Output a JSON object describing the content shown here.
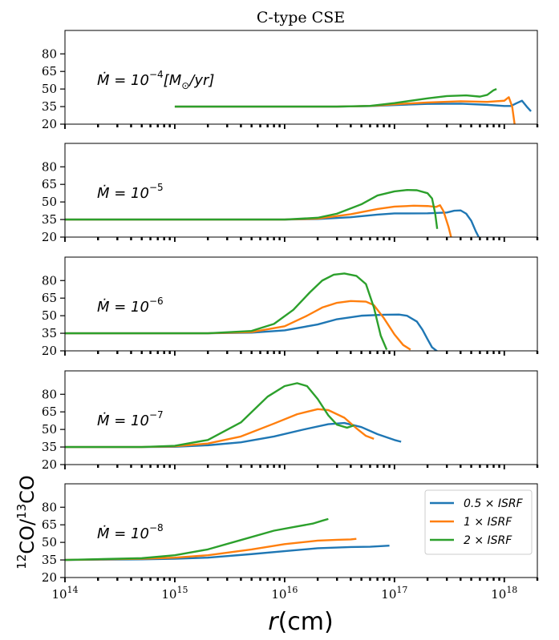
{
  "chart_data": [
    {
      "type": "line",
      "title": "C-type CSE",
      "annotation": "Ṁ = 10⁻⁴[M⊙/yr]",
      "annotation_parts": [
        {
          "t": "Ṁ = 10"
        },
        {
          "t": "−4",
          "sup": true
        },
        {
          "t": "[M"
        },
        {
          "t": "⊙",
          "sub": true
        },
        {
          "t": "/yr]"
        }
      ],
      "xscale": "log",
      "xlim": [
        100000000000000.0,
        2e+18
      ],
      "ylim": [
        20,
        100
      ],
      "yticks": [
        20,
        35,
        50,
        65,
        80
      ],
      "series": [
        {
          "name": "0.5×ISRF",
          "color": "#1f77b4",
          "points": [
            [
              1000000000000000.0,
              35
            ],
            [
              1e+16,
              35
            ],
            [
              3e+16,
              35
            ],
            [
              6e+16,
              35.4
            ],
            [
              1e+17,
              36.3
            ],
            [
              2e+17,
              37.3
            ],
            [
              4e+17,
              37.5
            ],
            [
              7e+17,
              36.5
            ],
            [
              1e+18,
              35.5
            ],
            [
              1.15e+18,
              35.5
            ],
            [
              1.3e+18,
              38
            ],
            [
              1.45e+18,
              40
            ],
            [
              1.6e+18,
              35
            ],
            [
              1.75e+18,
              31
            ]
          ]
        },
        {
          "name": "1×ISRF",
          "color": "#ff7f0e",
          "points": [
            [
              1000000000000000.0,
              35
            ],
            [
              1e+16,
              35
            ],
            [
              3e+16,
              35
            ],
            [
              6e+16,
              35.5
            ],
            [
              1e+17,
              37
            ],
            [
              2e+17,
              38.5
            ],
            [
              4e+17,
              39.5
            ],
            [
              7e+17,
              39
            ],
            [
              1e+18,
              40
            ],
            [
              1.1e+18,
              43
            ],
            [
              1.18e+18,
              35
            ],
            [
              1.25e+18,
              18
            ]
          ]
        },
        {
          "name": "2×ISRF",
          "color": "#2ca02c",
          "points": [
            [
              1000000000000000.0,
              35
            ],
            [
              1e+16,
              35
            ],
            [
              3e+16,
              35
            ],
            [
              6e+16,
              35.6
            ],
            [
              1e+17,
              38
            ],
            [
              2e+17,
              42
            ],
            [
              3e+17,
              44
            ],
            [
              4.5e+17,
              44.6
            ],
            [
              6e+17,
              43.5
            ],
            [
              7e+17,
              45
            ],
            [
              8e+17,
              49
            ],
            [
              8.5e+17,
              50
            ]
          ]
        }
      ]
    },
    {
      "type": "line",
      "annotation": "Ṁ = 10⁻⁵",
      "annotation_parts": [
        {
          "t": "Ṁ = 10"
        },
        {
          "t": "−5",
          "sup": true
        }
      ],
      "xscale": "log",
      "xlim": [
        100000000000000.0,
        2e+18
      ],
      "ylim": [
        20,
        100
      ],
      "yticks": [
        20,
        35,
        50,
        65,
        80
      ],
      "series": [
        {
          "name": "0.5×ISRF",
          "color": "#1f77b4",
          "points": [
            [
              100000000000000.0,
              35
            ],
            [
              1e+16,
              35
            ],
            [
              2e+16,
              35.4
            ],
            [
              4e+16,
              37
            ],
            [
              7e+16,
              39.2
            ],
            [
              1e+17,
              40.2
            ],
            [
              2e+17,
              40.3
            ],
            [
              3e+17,
              41
            ],
            [
              3.5e+17,
              42.5
            ],
            [
              4e+17,
              42.8
            ],
            [
              4.5e+17,
              40
            ],
            [
              5e+17,
              34
            ],
            [
              5.5e+17,
              25
            ],
            [
              6e+17,
              18
            ]
          ]
        },
        {
          "name": "1×ISRF",
          "color": "#ff7f0e",
          "points": [
            [
              100000000000000.0,
              35
            ],
            [
              1e+16,
              35
            ],
            [
              2e+16,
              35.8
            ],
            [
              4e+16,
              39.5
            ],
            [
              7e+16,
              44
            ],
            [
              1e+17,
              46
            ],
            [
              1.5e+17,
              46.8
            ],
            [
              2e+17,
              46.5
            ],
            [
              2.4e+17,
              45.8
            ],
            [
              2.6e+17,
              47.2
            ],
            [
              2.8e+17,
              42
            ],
            [
              3.1e+17,
              29
            ],
            [
              3.3e+17,
              19
            ]
          ]
        },
        {
          "name": "2×ISRF",
          "color": "#2ca02c",
          "points": [
            [
              100000000000000.0,
              35
            ],
            [
              1e+16,
              35
            ],
            [
              2e+16,
              36.5
            ],
            [
              3e+16,
              40
            ],
            [
              5e+16,
              48
            ],
            [
              7e+16,
              55.5
            ],
            [
              1e+17,
              59
            ],
            [
              1.3e+17,
              60.2
            ],
            [
              1.6e+17,
              60
            ],
            [
              2e+17,
              57.5
            ],
            [
              2.2e+17,
              53
            ],
            [
              2.35e+17,
              40
            ],
            [
              2.45e+17,
              27
            ]
          ]
        }
      ]
    },
    {
      "type": "line",
      "annotation": "Ṁ = 10⁻⁶",
      "annotation_parts": [
        {
          "t": "Ṁ = 10"
        },
        {
          "t": "−6",
          "sup": true
        }
      ],
      "xscale": "log",
      "xlim": [
        100000000000000.0,
        2e+18
      ],
      "ylim": [
        20,
        100
      ],
      "yticks": [
        20,
        35,
        50,
        65,
        80
      ],
      "series": [
        {
          "name": "0.5×ISRF",
          "color": "#1f77b4",
          "points": [
            [
              100000000000000.0,
              35
            ],
            [
              2000000000000000.0,
              35
            ],
            [
              5000000000000000.0,
              35.5
            ],
            [
              1e+16,
              37.5
            ],
            [
              2e+16,
              42.5
            ],
            [
              3e+16,
              47
            ],
            [
              5e+16,
              50
            ],
            [
              8e+16,
              50.8
            ],
            [
              1.1e+17,
              51
            ],
            [
              1.3e+17,
              50
            ],
            [
              1.6e+17,
              45
            ],
            [
              1.8e+17,
              38
            ],
            [
              2e+17,
              30
            ],
            [
              2.2e+17,
              23
            ],
            [
              2.5e+17,
              19
            ]
          ]
        },
        {
          "name": "1×ISRF",
          "color": "#ff7f0e",
          "points": [
            [
              100000000000000.0,
              35
            ],
            [
              2000000000000000.0,
              35
            ],
            [
              5000000000000000.0,
              36
            ],
            [
              1e+16,
              41
            ],
            [
              1.6e+16,
              50
            ],
            [
              2.2e+16,
              57
            ],
            [
              3e+16,
              61
            ],
            [
              4e+16,
              62.5
            ],
            [
              5.5e+16,
              62
            ],
            [
              6.5e+16,
              59
            ],
            [
              8e+16,
              48
            ],
            [
              1e+17,
              34
            ],
            [
              1.2e+17,
              25
            ],
            [
              1.4e+17,
              21
            ]
          ]
        },
        {
          "name": "2×ISRF",
          "color": "#2ca02c",
          "points": [
            [
              100000000000000.0,
              35
            ],
            [
              2000000000000000.0,
              35
            ],
            [
              5000000000000000.0,
              37
            ],
            [
              8000000000000000.0,
              43
            ],
            [
              1.2e+16,
              55
            ],
            [
              1.7e+16,
              70
            ],
            [
              2.2e+16,
              80
            ],
            [
              2.8e+16,
              85
            ],
            [
              3.5e+16,
              86
            ],
            [
              4.5e+16,
              84
            ],
            [
              5.5e+16,
              77
            ],
            [
              6.5e+16,
              57
            ],
            [
              7.5e+16,
              33
            ],
            [
              8.5e+16,
              21
            ]
          ]
        }
      ]
    },
    {
      "type": "line",
      "annotation": "Ṁ = 10⁻⁷",
      "annotation_parts": [
        {
          "t": "Ṁ = 10"
        },
        {
          "t": "−7",
          "sup": true
        }
      ],
      "xscale": "log",
      "xlim": [
        100000000000000.0,
        2e+18
      ],
      "ylim": [
        20,
        100
      ],
      "yticks": [
        20,
        35,
        50,
        65,
        80
      ],
      "series": [
        {
          "name": "0.5×ISRF",
          "color": "#1f77b4",
          "points": [
            [
              100000000000000.0,
              35
            ],
            [
              500000000000000.0,
              35
            ],
            [
              1000000000000000.0,
              35.2
            ],
            [
              2000000000000000.0,
              36.5
            ],
            [
              4000000000000000.0,
              39
            ],
            [
              8000000000000000.0,
              44
            ],
            [
              1.5e+16,
              50
            ],
            [
              2.5e+16,
              54.5
            ],
            [
              3.5e+16,
              55.5
            ],
            [
              5e+16,
              52
            ],
            [
              7e+16,
              46
            ],
            [
              1e+17,
              41
            ],
            [
              1.15e+17,
              39.5
            ]
          ]
        },
        {
          "name": "1×ISRF",
          "color": "#ff7f0e",
          "points": [
            [
              100000000000000.0,
              35
            ],
            [
              500000000000000.0,
              35
            ],
            [
              1000000000000000.0,
              35.6
            ],
            [
              2000000000000000.0,
              38
            ],
            [
              4000000000000000.0,
              44
            ],
            [
              8000000000000000.0,
              55
            ],
            [
              1.3e+16,
              63
            ],
            [
              2e+16,
              67.3
            ],
            [
              2.5e+16,
              66.5
            ],
            [
              3.5e+16,
              60
            ],
            [
              4.5e+16,
              51
            ],
            [
              5.5e+16,
              44.5
            ],
            [
              6.5e+16,
              42
            ]
          ]
        },
        {
          "name": "2×ISRF",
          "color": "#2ca02c",
          "points": [
            [
              100000000000000.0,
              35
            ],
            [
              500000000000000.0,
              35
            ],
            [
              1000000000000000.0,
              36
            ],
            [
              2000000000000000.0,
              41
            ],
            [
              4000000000000000.0,
              56
            ],
            [
              7000000000000000.0,
              78
            ],
            [
              1e+16,
              87
            ],
            [
              1.3e+16,
              89.5
            ],
            [
              1.6e+16,
              87
            ],
            [
              2e+16,
              76
            ],
            [
              2.5e+16,
              62
            ],
            [
              3e+16,
              54
            ],
            [
              3.7e+16,
              51.5
            ],
            [
              4.3e+16,
              53.5
            ]
          ]
        }
      ]
    },
    {
      "type": "line",
      "annotation": "Ṁ = 10⁻⁸",
      "annotation_parts": [
        {
          "t": "Ṁ = 10"
        },
        {
          "t": "−8",
          "sup": true
        }
      ],
      "xlabel": "r(cm)",
      "ylabel": "12CO/13CO",
      "xscale": "log",
      "xlim": [
        100000000000000.0,
        2e+18
      ],
      "ylim": [
        20,
        100
      ],
      "yticks": [
        20,
        35,
        50,
        65,
        80
      ],
      "xticks": [
        {
          "value": 100000000000000.0,
          "base": "10",
          "exp": "14"
        },
        {
          "value": 1000000000000000.0,
          "base": "10",
          "exp": "15"
        },
        {
          "value": 1e+16,
          "base": "10",
          "exp": "16"
        },
        {
          "value": 1e+17,
          "base": "10",
          "exp": "17"
        },
        {
          "value": 1e+18,
          "base": "10",
          "exp": "18"
        }
      ],
      "legend": {
        "position": "top-right",
        "entries": [
          {
            "label": "0.5 × ISRF",
            "color": "#1f77b4"
          },
          {
            "label": "1 × ISRF",
            "color": "#ff7f0e"
          },
          {
            "label": "2 × ISRF",
            "color": "#2ca02c"
          }
        ]
      },
      "series": [
        {
          "name": "0.5×ISRF",
          "color": "#1f77b4",
          "points": [
            [
              100000000000000.0,
              35
            ],
            [
              500000000000000.0,
              35.5
            ],
            [
              1000000000000000.0,
              36
            ],
            [
              2000000000000000.0,
              37
            ],
            [
              5000000000000000.0,
              40
            ],
            [
              1e+16,
              42.5
            ],
            [
              2e+16,
              45
            ],
            [
              4e+16,
              46
            ],
            [
              6e+16,
              46.3
            ],
            [
              9e+16,
              47.2
            ]
          ]
        },
        {
          "name": "1×ISRF",
          "color": "#ff7f0e",
          "points": [
            [
              100000000000000.0,
              35
            ],
            [
              500000000000000.0,
              36
            ],
            [
              1000000000000000.0,
              37
            ],
            [
              2000000000000000.0,
              39
            ],
            [
              5000000000000000.0,
              44
            ],
            [
              1e+16,
              48.5
            ],
            [
              2e+16,
              51.5
            ],
            [
              3e+16,
              52.2
            ],
            [
              4e+16,
              52.5
            ],
            [
              4.5e+16,
              53
            ]
          ]
        },
        {
          "name": "2×ISRF",
          "color": "#2ca02c",
          "points": [
            [
              100000000000000.0,
              35
            ],
            [
              500000000000000.0,
              36.5
            ],
            [
              1000000000000000.0,
              39
            ],
            [
              2000000000000000.0,
              44
            ],
            [
              4000000000000000.0,
              52
            ],
            [
              8000000000000000.0,
              60
            ],
            [
              1.2e+16,
              63
            ],
            [
              1.8e+16,
              66
            ],
            [
              2.2e+16,
              68.5
            ],
            [
              2.5e+16,
              70
            ]
          ]
        }
      ]
    }
  ]
}
